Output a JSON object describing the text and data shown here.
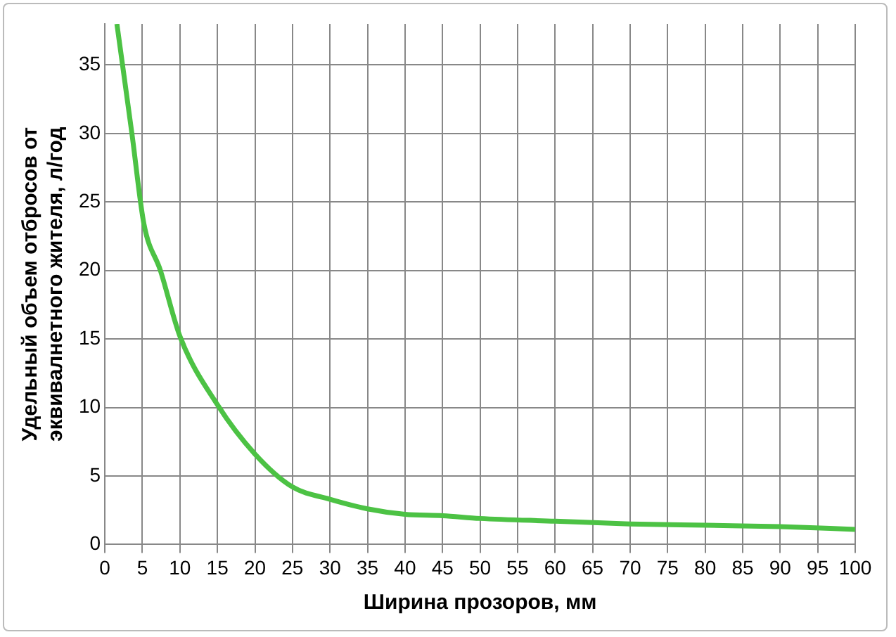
{
  "chart_data": {
    "type": "line",
    "xlabel": "Ширина прозоров, мм",
    "ylabel": "Удельный объем отбросов от\nэквивалнетного жителя, л/год",
    "x": [
      1.6,
      3.6,
      5.2,
      7.4,
      10,
      15,
      20,
      25,
      30,
      35,
      40,
      45,
      50,
      60,
      70,
      80,
      90,
      100
    ],
    "series": [
      {
        "color": "#4cc244",
        "values": [
          38,
          30,
          23.4,
          20,
          15.2,
          10.2,
          6.6,
          4.2,
          3.3,
          2.6,
          2.2,
          2.1,
          1.9,
          1.7,
          1.5,
          1.4,
          1.3,
          1.1
        ]
      }
    ],
    "xlim": [
      0,
      100
    ],
    "xticks": [
      0,
      5,
      10,
      15,
      20,
      25,
      30,
      35,
      40,
      45,
      50,
      55,
      60,
      65,
      70,
      75,
      80,
      85,
      90,
      95,
      100
    ],
    "ylim": [
      0,
      38
    ],
    "yticks": [
      0,
      5,
      10,
      15,
      20,
      25,
      30,
      35
    ],
    "grid": true,
    "legend": false,
    "marker": "none",
    "line_style": "solid"
  }
}
